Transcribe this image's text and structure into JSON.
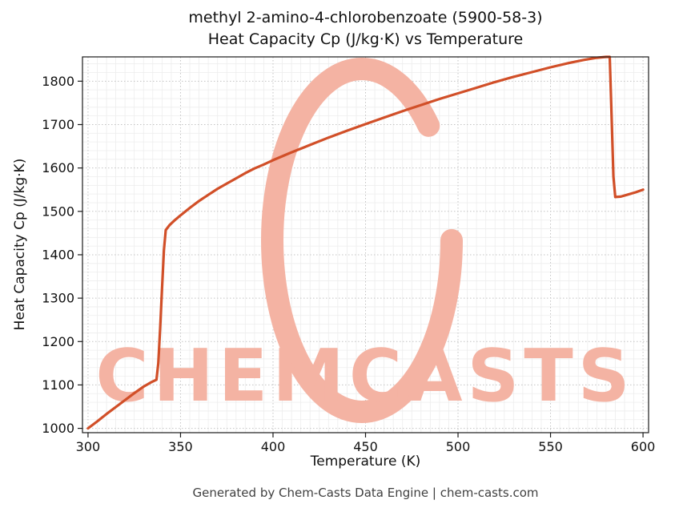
{
  "header": {
    "title_line1": "methyl 2-amino-4-chlorobenzoate (5900-58-3)",
    "title_line2": "Heat Capacity Cp (J/kg·K) vs Temperature"
  },
  "watermark": {
    "text": "CHEMCASTS",
    "logo": "chemcasts-ring-logo",
    "color": "#f4b3a3"
  },
  "footer": {
    "text": "Generated by Chem-Casts Data Engine | chem-casts.com"
  },
  "chart_data": {
    "type": "line",
    "title": "methyl 2-amino-4-chlorobenzoate (5900-58-3) — Heat Capacity Cp (J/kg·K) vs Temperature",
    "xlabel": "Temperature (K)",
    "ylabel": "Heat Capacity Cp (J/kg·K)",
    "xlim": [
      297,
      603
    ],
    "ylim": [
      990,
      1856
    ],
    "x_ticks": [
      300,
      350,
      400,
      450,
      500,
      550,
      600
    ],
    "y_ticks": [
      1000,
      1100,
      1200,
      1300,
      1400,
      1500,
      1600,
      1700,
      1800
    ],
    "x_minor_step": 5,
    "y_minor_step": 20,
    "grid": true,
    "legend_position": "none",
    "line_color": "#d14f28",
    "line_width": 3.2,
    "series": [
      {
        "name": "Heat Capacity Cp",
        "points": [
          [
            300,
            1000
          ],
          [
            305,
            1016
          ],
          [
            310,
            1033
          ],
          [
            315,
            1049
          ],
          [
            320,
            1065
          ],
          [
            325,
            1081
          ],
          [
            330,
            1096
          ],
          [
            334,
            1106
          ],
          [
            337,
            1112
          ],
          [
            338,
            1150
          ],
          [
            339,
            1230
          ],
          [
            340,
            1320
          ],
          [
            341,
            1410
          ],
          [
            342,
            1457
          ],
          [
            344,
            1468
          ],
          [
            347,
            1480
          ],
          [
            350,
            1491
          ],
          [
            355,
            1508
          ],
          [
            360,
            1524
          ],
          [
            365,
            1538
          ],
          [
            370,
            1552
          ],
          [
            375,
            1564
          ],
          [
            380,
            1576
          ],
          [
            385,
            1588
          ],
          [
            390,
            1599
          ],
          [
            395,
            1608
          ],
          [
            400,
            1618
          ],
          [
            410,
            1636
          ],
          [
            420,
            1653
          ],
          [
            430,
            1670
          ],
          [
            440,
            1686
          ],
          [
            450,
            1701
          ],
          [
            460,
            1716
          ],
          [
            470,
            1731
          ],
          [
            480,
            1745
          ],
          [
            490,
            1759
          ],
          [
            500,
            1772
          ],
          [
            510,
            1785
          ],
          [
            520,
            1798
          ],
          [
            530,
            1810
          ],
          [
            540,
            1821
          ],
          [
            550,
            1832
          ],
          [
            560,
            1842
          ],
          [
            568,
            1849
          ],
          [
            575,
            1854
          ],
          [
            580,
            1856
          ],
          [
            582,
            1856
          ],
          [
            583,
            1720
          ],
          [
            584,
            1580
          ],
          [
            585,
            1533
          ],
          [
            588,
            1534
          ],
          [
            592,
            1539
          ],
          [
            596,
            1544
          ],
          [
            600,
            1550
          ]
        ]
      }
    ]
  }
}
